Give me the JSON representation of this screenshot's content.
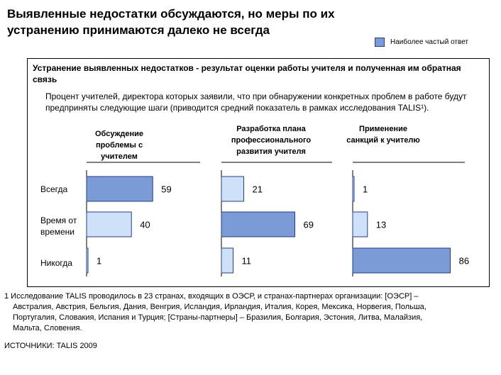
{
  "title": "Выявленные недостатки обсуждаются, но меры по их устранению принимаются далеко не всегда",
  "legend": {
    "label": "Наиболее частый ответ",
    "color": "#7b9bd7"
  },
  "box_header": "Устранение выявленных недостатков - результат оценки работы учителя и полученная им обратная связь",
  "subtitle": "Процент учителей, директора которых заявили, что при обнаружении конкретных проблем в работе будут предприняты следующие шаги (приводится средний показатель в рамках исследования TALIS¹).",
  "chart_data": {
    "type": "bar",
    "orientation": "horizontal",
    "categories": [
      "Всегда",
      "Время от времени",
      "Никогда"
    ],
    "series": [
      {
        "name": "Обсуждение проблемы с учителем",
        "values": [
          59,
          40,
          1
        ],
        "most_frequent": [
          true,
          false,
          false
        ]
      },
      {
        "name": "Разработка плана профессионального развития учителя",
        "values": [
          21,
          69,
          11
        ],
        "most_frequent": [
          false,
          true,
          false
        ]
      },
      {
        "name": "Применение санкций к учителю",
        "values": [
          1,
          13,
          86
        ],
        "most_frequent": [
          false,
          false,
          true
        ]
      }
    ],
    "xlim": [
      0,
      100
    ],
    "colors": {
      "most_frequent": "#7b9bd7",
      "other": "#cfe1f8",
      "border": "#1f3f8f"
    }
  },
  "footnote": [
    "1 Исследование TALIS проводилось в 23 странах, входящих в ОЭСР, и странах-партнерах организации: [ОЭСР] –",
    "Австралия, Австрия, Бельгия, Дания, Венгрия,  Исландия, Ирландия, Италия, Корея, Мексика, Норвегия, Польша,",
    "Португалия, Словакия, Испания и Турция; [Страны-партнеры] – Бразилия, Болгария, Эстония, Литва, Малайзия,",
    "Мальта, Словения."
  ],
  "source": "ИСТОЧНИКИ:  TALIS 2009"
}
